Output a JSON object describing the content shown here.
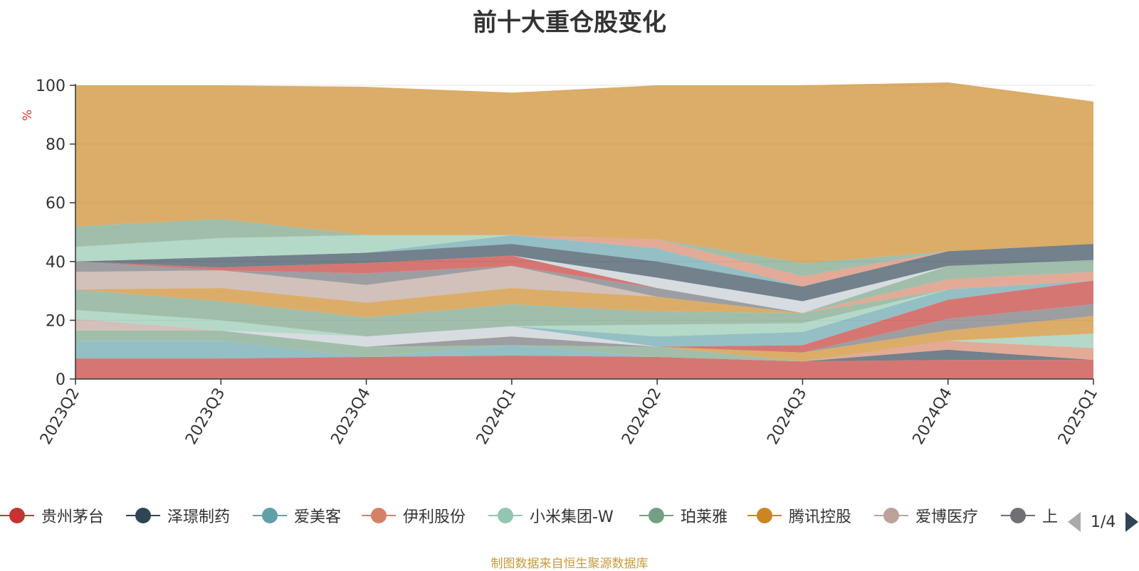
{
  "chart_data": {
    "type": "area",
    "title": "前十大重仓股变化",
    "ylabel": "%",
    "ylim": [
      0,
      100
    ],
    "yticks": [
      0,
      20,
      40,
      60,
      80,
      100
    ],
    "grid": true,
    "legend_position": "bottom",
    "categories": [
      "2023Q2",
      "2023Q3",
      "2023Q4",
      "2024Q1",
      "2024Q2",
      "2024Q3",
      "2024Q4",
      "2025Q1"
    ],
    "series": [
      {
        "name": "贵州茅台",
        "color": "#c23531",
        "values": [
          7,
          7,
          7.5,
          8,
          7.5,
          6,
          6.5,
          6.5
        ]
      },
      {
        "name": "泽璟制药",
        "color": "#2f4554",
        "values": [
          0,
          0,
          0,
          0,
          0,
          0,
          3.5,
          0
        ]
      },
      {
        "name": "爱美客",
        "color": "#61a0a8",
        "values": [
          6,
          6,
          0,
          3.5,
          0,
          0,
          0,
          0
        ]
      },
      {
        "name": "伊利股份",
        "color": "#d48265",
        "values": [
          0,
          0,
          0,
          0,
          0,
          0,
          3,
          4
        ]
      },
      {
        "name": "小米集团-W",
        "color": "#91c7ae",
        "values": [
          0,
          0,
          0,
          0,
          0,
          0,
          0,
          5
        ]
      },
      {
        "name": "珀莱雅",
        "color": "#749f83",
        "values": [
          3.5,
          3.5,
          3.5,
          0,
          3.5,
          0,
          0,
          0
        ]
      },
      {
        "name": "腾讯控股",
        "color": "#ca8622",
        "values": [
          0,
          0,
          0,
          0,
          0,
          3,
          3.5,
          6
        ]
      },
      {
        "name": "爱博医疗",
        "color": "#bda29a",
        "values": [
          4,
          0,
          0,
          0,
          0,
          0,
          0,
          0
        ]
      },
      {
        "name": "上",
        "color": "#6e7074",
        "values": [
          0,
          0,
          0,
          3,
          0,
          0,
          4,
          4
        ]
      },
      {
        "name": "",
        "color": "#c4ccd3",
        "values": [
          0,
          0,
          3.5,
          3.5,
          0,
          0,
          0,
          0
        ]
      },
      {
        "name": "",
        "color": "#c23531",
        "values": [
          0,
          0,
          0,
          0,
          0,
          2.5,
          6.5,
          8
        ]
      },
      {
        "name": "",
        "color": "#61a0a8",
        "values": [
          0,
          0,
          0,
          0,
          3.5,
          4.5,
          3.5,
          0
        ]
      },
      {
        "name": "",
        "color": "#91c7ae",
        "values": [
          3,
          3.5,
          0,
          0,
          4,
          3,
          0,
          0
        ]
      },
      {
        "name": "",
        "color": "#749f83",
        "values": [
          7,
          6.5,
          6.5,
          7.5,
          4.5,
          3.5,
          0,
          0
        ]
      },
      {
        "name": "",
        "color": "#d48265",
        "values": [
          0,
          0,
          0,
          0,
          0,
          0,
          3.5,
          3
        ]
      },
      {
        "name": "",
        "color": "#ca8622",
        "values": [
          0,
          4.5,
          5,
          5.5,
          5,
          0,
          0,
          0
        ]
      },
      {
        "name": "",
        "color": "#bda29a",
        "values": [
          6,
          6,
          6,
          7.5,
          0,
          0,
          0,
          0
        ]
      },
      {
        "name": "",
        "color": "#6e7074",
        "values": [
          3.5,
          0,
          4,
          0,
          3,
          0,
          0,
          0
        ]
      },
      {
        "name": "",
        "color": "#749f83",
        "values": [
          0,
          0,
          0,
          0,
          0,
          0,
          4.5,
          4
        ]
      },
      {
        "name": "",
        "color": "#c23531",
        "values": [
          0,
          1,
          3.5,
          3.5,
          0,
          0,
          0,
          0
        ]
      },
      {
        "name": "",
        "color": "#c4ccd3",
        "values": [
          0,
          0,
          0,
          0,
          3.5,
          4,
          0,
          0
        ]
      },
      {
        "name": "",
        "color": "#2f4554",
        "values": [
          0,
          3.5,
          3.5,
          4,
          5.5,
          5,
          5,
          5.5
        ]
      },
      {
        "name": "",
        "color": "#61a0a8",
        "values": [
          0,
          0,
          0,
          3,
          4.5,
          0,
          0,
          0
        ]
      },
      {
        "name": "",
        "color": "#91c7ae",
        "values": [
          5,
          6.5,
          6,
          0,
          0,
          0,
          0,
          0
        ]
      },
      {
        "name": "",
        "color": "#d48265",
        "values": [
          0,
          0,
          0,
          0,
          3,
          3.5,
          0,
          0
        ]
      },
      {
        "name": "",
        "color": "#749f83",
        "values": [
          7,
          6.5,
          0,
          0,
          0,
          4.5,
          0,
          0
        ]
      },
      {
        "name": "",
        "color": "#ca8622",
        "values": [
          48,
          45.5,
          50.5,
          48.5,
          52.5,
          60.5,
          57.5,
          48.5
        ]
      }
    ]
  },
  "legend": {
    "items": [
      {
        "label": "贵州茅台",
        "color": "#c23531"
      },
      {
        "label": "泽璟制药",
        "color": "#2f4554"
      },
      {
        "label": "爱美客",
        "color": "#61a0a8"
      },
      {
        "label": "伊利股份",
        "color": "#d48265"
      },
      {
        "label": "小米集团-W",
        "color": "#91c7ae"
      },
      {
        "label": "珀莱雅",
        "color": "#749f83"
      },
      {
        "label": "腾讯控股",
        "color": "#ca8622"
      },
      {
        "label": "爱博医疗",
        "color": "#bda29a"
      },
      {
        "label": "上",
        "color": "#6e7074"
      }
    ],
    "page_indicator": "1/4"
  },
  "footer": {
    "source_note": "制图数据来自恒生聚源数据库"
  },
  "colors": {
    "axis": "#333333",
    "grid": "#e0e0e0",
    "title": "#333333",
    "source_note": "#c79a3b",
    "ylabel": "#e03030"
  }
}
